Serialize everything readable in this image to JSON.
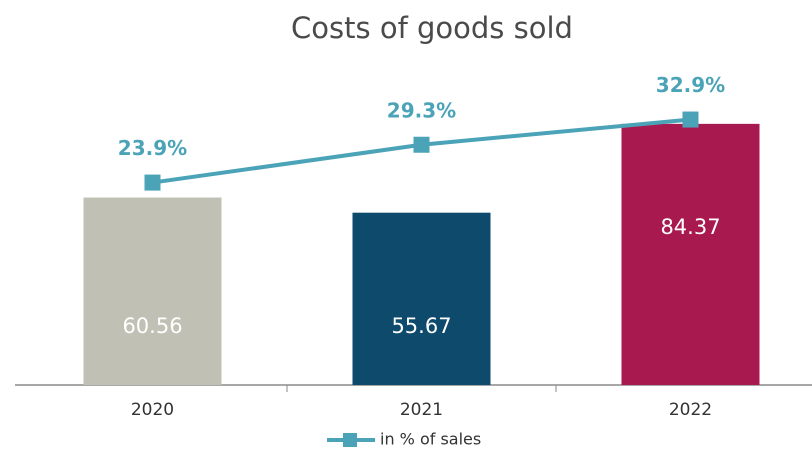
{
  "chart_data": {
    "type": "bar",
    "title": "Costs of goods sold",
    "categories": [
      "2020",
      "2021",
      "2022"
    ],
    "ylim": [
      0,
      105
    ],
    "y2lim": [
      -5,
      41.4
    ],
    "series": [
      {
        "type": "bar",
        "colors": [
          "#c0c1b4",
          "#0d4a6b",
          "#a81a4f"
        ],
        "values": [
          60.56,
          55.67,
          84.37
        ]
      },
      {
        "type": "line",
        "name": "in % of sales",
        "axis": "y2",
        "color": "#4ba3b8",
        "values": [
          23.9,
          29.3,
          32.9
        ],
        "value_labels": [
          "23.9%",
          "29.3%",
          "32.9%"
        ]
      }
    ],
    "legend": "bottom"
  }
}
